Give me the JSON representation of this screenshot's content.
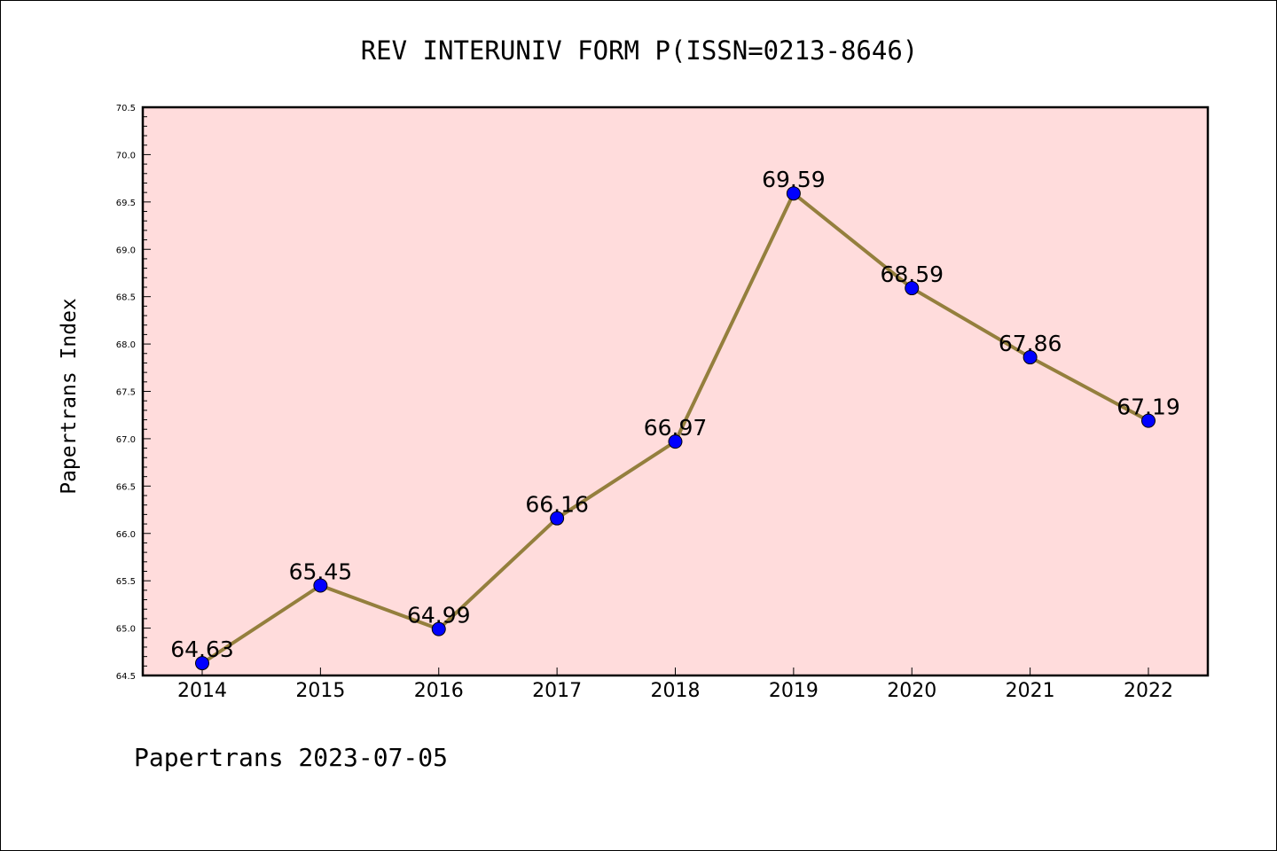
{
  "chart_data": {
    "type": "line",
    "title": "REV INTERUNIV FORM P(ISSN=0213-8646)",
    "xlabel": "",
    "ylabel": "Papertrans Index",
    "x": [
      "2014",
      "2015",
      "2016",
      "2017",
      "2018",
      "2019",
      "2020",
      "2021",
      "2022"
    ],
    "series": [
      {
        "values": [
          64.63,
          65.45,
          64.99,
          66.16,
          66.97,
          69.59,
          68.59,
          67.86,
          67.19
        ],
        "labels": [
          "64.63",
          "65.45",
          "64.99",
          "66.16",
          "66.97",
          "69.59",
          "68.59",
          "67.86",
          "67.19"
        ]
      }
    ],
    "ylim": [
      64.5,
      70.5
    ],
    "yticks": [
      "64.5",
      "65.0",
      "65.5",
      "66.0",
      "66.5",
      "67.0",
      "67.5",
      "68.0",
      "68.5",
      "69.0",
      "69.5",
      "70.0",
      "70.5"
    ],
    "grid": false,
    "colors": {
      "plot_background": "#FFDCDC",
      "line": "#947F3D",
      "marker": "#0000FF"
    }
  },
  "footer": "Papertrans 2023-07-05"
}
